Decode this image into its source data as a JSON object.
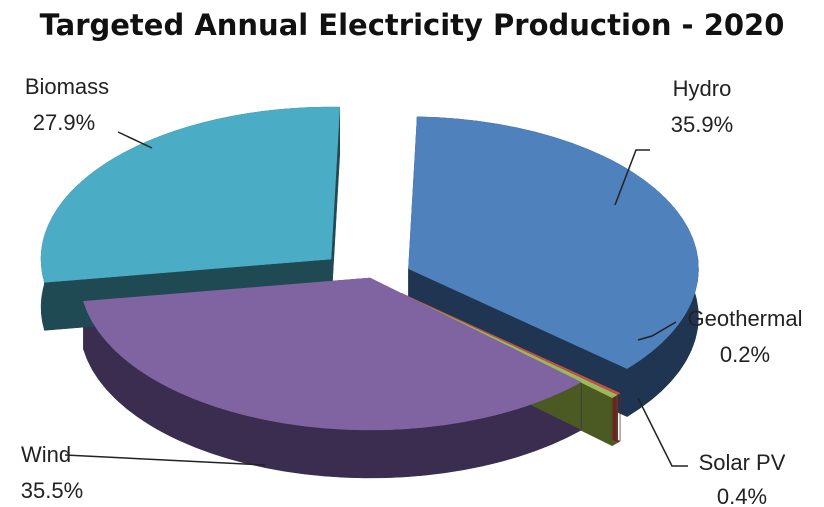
{
  "chart_data": {
    "type": "pie",
    "title": "Targeted Annual Electricity Production - 2020",
    "three_d": true,
    "exploded": true,
    "slices": [
      {
        "label": "Hydro",
        "value": 35.9,
        "value_label": "35.9%",
        "color": "#4f81bd",
        "side_color": "#1f3552"
      },
      {
        "label": "Geothermal",
        "value": 0.2,
        "value_label": "0.2%",
        "color": "#c0504d",
        "side_color": "#6b2422"
      },
      {
        "label": "Solar PV",
        "value": 0.4,
        "value_label": "0.4%",
        "color": "#9bbb59",
        "side_color": "#4a5a22"
      },
      {
        "label": "Wind",
        "value": 35.5,
        "value_label": "35.5%",
        "color": "#8064a2",
        "side_color": "#3a2d4f"
      },
      {
        "label": "Biomass",
        "value": 27.9,
        "value_label": "27.9%",
        "color": "#4bacc6",
        "side_color": "#1f4a54"
      }
    ]
  }
}
